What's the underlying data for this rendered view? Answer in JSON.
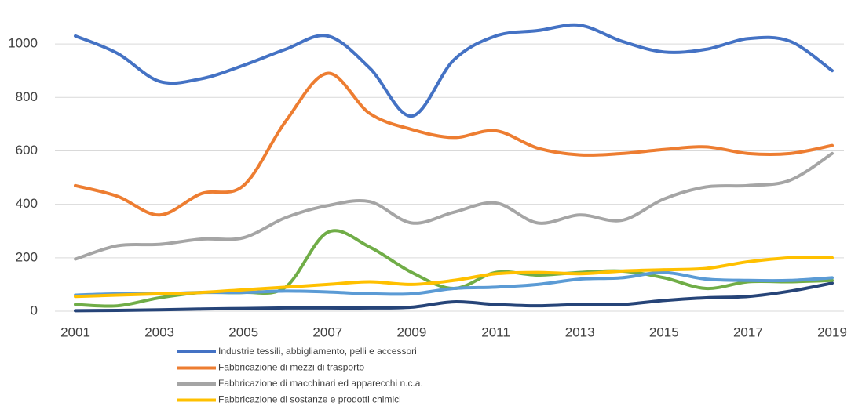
{
  "chart_data": {
    "type": "line",
    "x": [
      2001,
      2002,
      2003,
      2004,
      2005,
      2006,
      2007,
      2008,
      2009,
      2010,
      2011,
      2012,
      2013,
      2014,
      2015,
      2016,
      2017,
      2018,
      2019
    ],
    "xlim": [
      2001,
      2019
    ],
    "xticks": [
      2001,
      2003,
      2005,
      2007,
      2009,
      2011,
      2013,
      2015,
      2017,
      2019
    ],
    "ylim": [
      0,
      1100
    ],
    "yticks": [
      0,
      200,
      400,
      600,
      800,
      1000
    ],
    "grid": true,
    "series": [
      {
        "name": "Industrie tessili, abbigliamento, pelli e accessori",
        "color": "#4472c4",
        "values": [
          1030,
          965,
          860,
          870,
          920,
          980,
          1030,
          910,
          730,
          940,
          1030,
          1050,
          1070,
          1010,
          970,
          980,
          1020,
          1010,
          900
        ]
      },
      {
        "name": "Fabbricazione di mezzi di trasporto",
        "color": "#ed7d31",
        "values": [
          470,
          430,
          360,
          440,
          470,
          710,
          890,
          740,
          680,
          650,
          675,
          610,
          585,
          590,
          605,
          615,
          590,
          590,
          620
        ]
      },
      {
        "name": "Fabbricazione di macchinari ed apparecchi n.c.a.",
        "color": "#a5a5a5",
        "values": [
          195,
          245,
          250,
          270,
          275,
          350,
          395,
          410,
          330,
          370,
          405,
          330,
          360,
          340,
          420,
          465,
          470,
          490,
          590
        ]
      },
      {
        "name": "Fabbricazione di sostanze e prodotti chimici",
        "color": "#ffc000",
        "values": [
          55,
          60,
          65,
          70,
          80,
          90,
          100,
          110,
          100,
          115,
          140,
          145,
          140,
          150,
          155,
          160,
          185,
          200,
          200
        ]
      },
      {
        "color": "#5b9bd5",
        "values": [
          60,
          65,
          65,
          70,
          70,
          75,
          72,
          65,
          65,
          85,
          90,
          100,
          120,
          125,
          145,
          120,
          115,
          115,
          125
        ]
      },
      {
        "color": "#70ad47",
        "values": [
          25,
          20,
          50,
          70,
          70,
          90,
          295,
          240,
          145,
          85,
          145,
          135,
          145,
          150,
          125,
          85,
          110,
          110,
          115
        ]
      },
      {
        "color": "#264478",
        "values": [
          2,
          3,
          5,
          8,
          10,
          12,
          12,
          12,
          15,
          35,
          25,
          20,
          25,
          25,
          40,
          50,
          55,
          75,
          105
        ]
      }
    ]
  }
}
